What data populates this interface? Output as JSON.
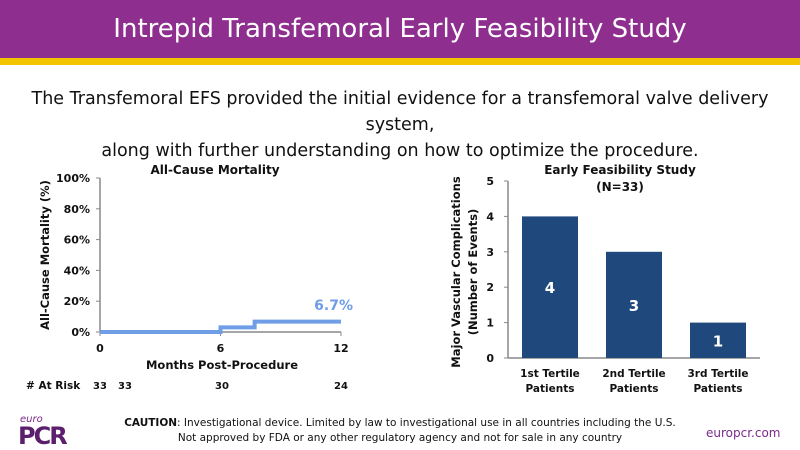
{
  "header": {
    "title": "Intrepid Transfemoral Early Feasibility Study"
  },
  "subtitle": {
    "line1": "The Transfemoral EFS provided the initial evidence for a transfemoral valve delivery system,",
    "line2": "along with further understanding on how to optimize the procedure."
  },
  "footer": {
    "caution_label": "CAUTION",
    "caution_line1": ": Investigational device. Limited by law to investigational use in all countries including the U.S.",
    "caution_line2": "Not approved by FDA or any other regulatory agency and not for sale in any country",
    "logo_small": "euro",
    "logo": "PCR",
    "url": "europcr.com"
  },
  "chart_data": [
    {
      "type": "line",
      "title": "All-Cause Mortality",
      "xlabel": "Months Post-Procedure",
      "ylabel": "All-Cause Mortality (%)",
      "xlim": [
        0,
        12
      ],
      "ylim": [
        0,
        100
      ],
      "x_ticks": [
        "0",
        "6",
        "12"
      ],
      "y_ticks": [
        "0%",
        "20%",
        "40%",
        "60%",
        "80%",
        "100%"
      ],
      "series": [
        {
          "step": true,
          "color": "#6f9de6",
          "x": [
            0,
            6,
            7.7,
            12
          ],
          "y": [
            0,
            3.0,
            6.7,
            6.7
          ]
        }
      ],
      "annotation": "6.7%",
      "at_risk": {
        "label": "# At Risk",
        "values": [
          "33",
          "33",
          "30",
          "24"
        ]
      }
    },
    {
      "type": "bar",
      "title_line1": "Early Feasibility Study",
      "title_line2": "(N=33)",
      "ylabel_line1": "Major Vascular Complications",
      "ylabel_line2": "(Number of Events)",
      "ylim": [
        0,
        5
      ],
      "y_ticks": [
        "0",
        "1",
        "2",
        "3",
        "4",
        "5"
      ],
      "color": "#1f497d",
      "categories": [
        [
          "1st Tertile",
          "Patients"
        ],
        [
          "2nd Tertile",
          "Patients"
        ],
        [
          "3rd Tertile",
          "Patients"
        ]
      ],
      "values": [
        4,
        3,
        1
      ]
    }
  ]
}
